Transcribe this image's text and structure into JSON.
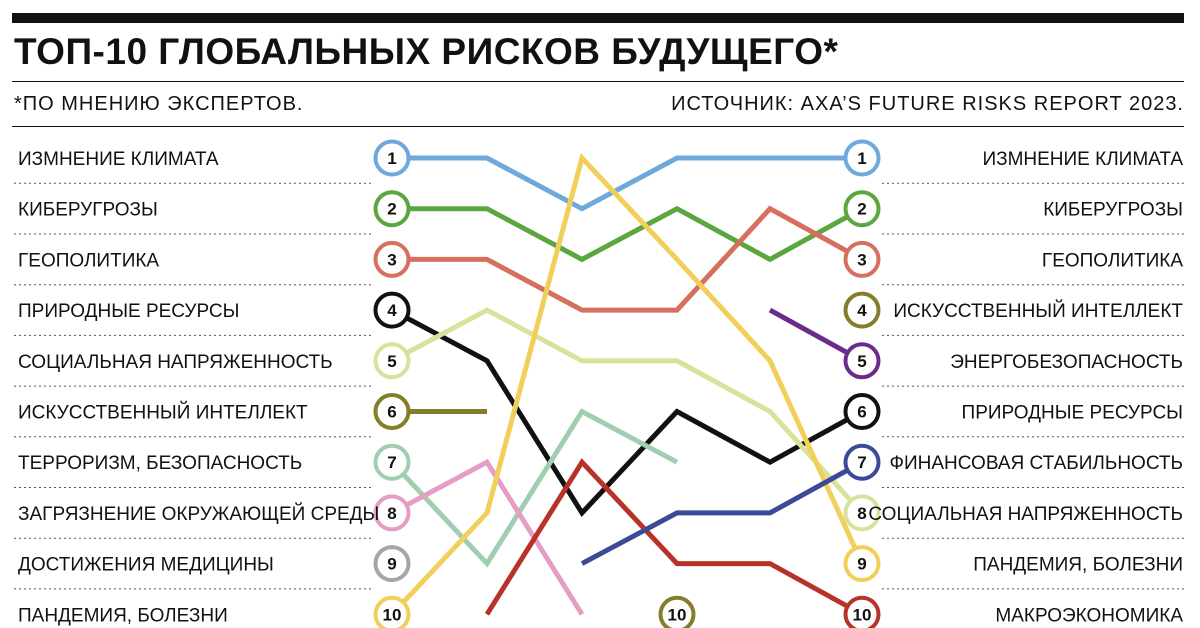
{
  "header": {
    "title": "ТОП-10 ГЛОБАЛЬНЫХ РИСКОВ БУДУЩЕГО*",
    "footnote": "*ПО МНЕНИЮ ЭКСПЕРТОВ.",
    "source": "ИСТОЧНИК: AXA’S FUTURE RISKS REPORT 2023."
  },
  "chart_data": {
    "type": "line",
    "subtype": "bump",
    "y_reversed": true,
    "ylim": [
      1,
      10
    ],
    "left_ranks": {
      "labels": [
        "ИЗМНЕНИЕ КЛИМАТА",
        "КИБЕРУГРОЗЫ",
        "ГЕОПОЛИТИКА",
        "ПРИРОДНЫЕ РЕСУРСЫ",
        "СОЦИАЛЬНАЯ НАПРЯЖЕННОСТЬ",
        "ИСКУССТВЕННЫЙ ИНТЕЛЛЕКТ",
        "ТЕРРОРИЗМ, БЕЗОПАСНОСТЬ",
        "ЗАГРЯЗНЕНИЕ ОКРУЖАЮЩЕЙ СРЕДЫ",
        "ДОСТИЖЕНИЯ МЕДИЦИНЫ",
        "ПАНДЕМИЯ, БОЛЕЗНИ"
      ],
      "numbers": [
        "1",
        "2",
        "3",
        "4",
        "5",
        "6",
        "7",
        "8",
        "9",
        "10"
      ]
    },
    "right_ranks": {
      "labels": [
        "ИЗМНЕНИЕ КЛИМАТА",
        "КИБЕРУГРОЗЫ",
        "ГЕОПОЛИТИКА",
        "ИСКУССТВЕННЫЙ ИНТЕЛЛЕКТ",
        "ЭНЕРГОБЕЗОПАСНОСТЬ",
        "ПРИРОДНЫЕ РЕСУРСЫ",
        "ФИНАНСОВАЯ СТАБИЛЬНОСТЬ",
        "СОЦИАЛЬНАЯ НАПРЯЖЕННОСТЬ",
        "ПАНДЕМИЯ, БОЛЕЗНИ",
        "МАКРОЭКОНОМИКА"
      ],
      "numbers": [
        "1",
        "2",
        "3",
        "4",
        "5",
        "6",
        "7",
        "8",
        "9",
        "10"
      ]
    },
    "extra_marker": {
      "number": "10",
      "period": 3,
      "rank": 10,
      "color": "#857c2c"
    },
    "series": [
      {
        "values": [
          1,
          1,
          2,
          1,
          1,
          1
        ],
        "color": "#6fa8dc"
      },
      {
        "values": [
          2,
          2,
          3,
          2,
          3,
          2
        ],
        "color": "#5aa63f"
      },
      {
        "values": [
          3,
          3,
          4,
          4,
          2,
          3
        ],
        "color": "#d66f5e"
      },
      {
        "values": [
          4,
          5,
          8,
          6,
          7,
          6
        ],
        "color": "#111111"
      },
      {
        "values": [
          5,
          4,
          5,
          5,
          6,
          8
        ],
        "color": "#d7e29a"
      },
      {
        "values": [
          6,
          6,
          null,
          null,
          null,
          null
        ],
        "color": "#857c2c"
      },
      {
        "values": [
          7,
          9,
          6,
          7,
          null,
          null
        ],
        "color": "#9fcfb0"
      },
      {
        "values": [
          8,
          7,
          10,
          null,
          null,
          null
        ],
        "color": "#e59dc6"
      },
      {
        "values": [
          9,
          null,
          null,
          null,
          null,
          null
        ],
        "color": "#a6a6a6"
      },
      {
        "values": [
          10,
          8,
          1,
          3,
          5,
          9
        ],
        "color": "#f2cf5a"
      },
      {
        "values": [
          null,
          10,
          7,
          9,
          9,
          10
        ],
        "color": "#b73229"
      },
      {
        "values": [
          null,
          null,
          9,
          8,
          8,
          7
        ],
        "color": "#3a4a96"
      },
      {
        "values": [
          null,
          null,
          null,
          null,
          4,
          5
        ],
        "color": "#6b2b8a"
      },
      {
        "values": [
          null,
          null,
          null,
          null,
          null,
          4
        ],
        "color": "#857c2c"
      }
    ]
  }
}
